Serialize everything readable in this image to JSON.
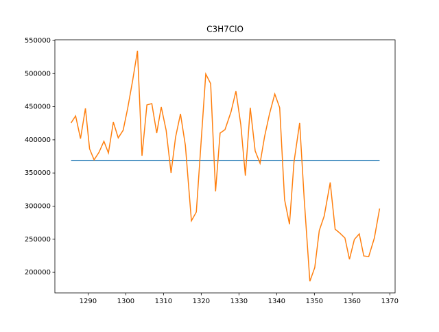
{
  "chart_data": {
    "type": "line",
    "title": "C3H7ClO",
    "xlim": [
      1281.2,
      1371.4
    ],
    "ylim": [
      169000,
      551000
    ],
    "xticks": [
      1290,
      1300,
      1310,
      1320,
      1330,
      1340,
      1350,
      1360,
      1370
    ],
    "yticks": [
      200000,
      250000,
      300000,
      350000,
      400000,
      450000,
      500000,
      550000
    ],
    "series": [
      {
        "color": "#1f77b4",
        "x": [
          1285.5,
          1367.3
        ],
        "values": [
          368800,
          368800
        ]
      },
      {
        "color": "#ff7f0e",
        "x": [
          1285.5,
          1286.7,
          1288.0,
          1289.3,
          1290.4,
          1291.6,
          1292.9,
          1294.2,
          1295.4,
          1296.7,
          1298.0,
          1299.3,
          1300.5,
          1301.8,
          1303.1,
          1304.3,
          1305.6,
          1306.9,
          1308.2,
          1309.4,
          1310.7,
          1312.0,
          1313.2,
          1314.5,
          1315.8,
          1317.4,
          1318.7,
          1321.2,
          1322.5,
          1323.8,
          1325.0,
          1326.3,
          1327.9,
          1329.2,
          1330.5,
          1331.7,
          1333.0,
          1334.3,
          1335.6,
          1336.8,
          1338.1,
          1339.5,
          1340.8,
          1342.1,
          1343.4,
          1344.6,
          1346.1,
          1347.3,
          1348.8,
          1350.1,
          1351.3,
          1352.6,
          1354.2,
          1355.5,
          1356.8,
          1358.1,
          1359.3,
          1360.6,
          1361.9,
          1363.1,
          1364.4,
          1365.9,
          1367.3
        ],
        "values": [
          425700,
          436100,
          401900,
          447500,
          386400,
          369800,
          381200,
          397800,
          380200,
          426800,
          403000,
          414400,
          447500,
          488900,
          534500,
          376000,
          452700,
          454700,
          410200,
          449600,
          414400,
          350100,
          404000,
          439200,
          391600,
          277700,
          291100,
          499300,
          484800,
          322200,
          410200,
          415400,
          442300,
          473400,
          422600,
          346000,
          448500,
          383300,
          364600,
          405000,
          439200,
          469200,
          448500,
          309800,
          272500,
          366700,
          425700,
          310800,
          186500,
          207200,
          263200,
          284900,
          335600,
          265200,
          259000,
          251800,
          219700,
          249700,
          258000,
          224800,
          223800,
          251800,
          296300
        ]
      }
    ]
  }
}
